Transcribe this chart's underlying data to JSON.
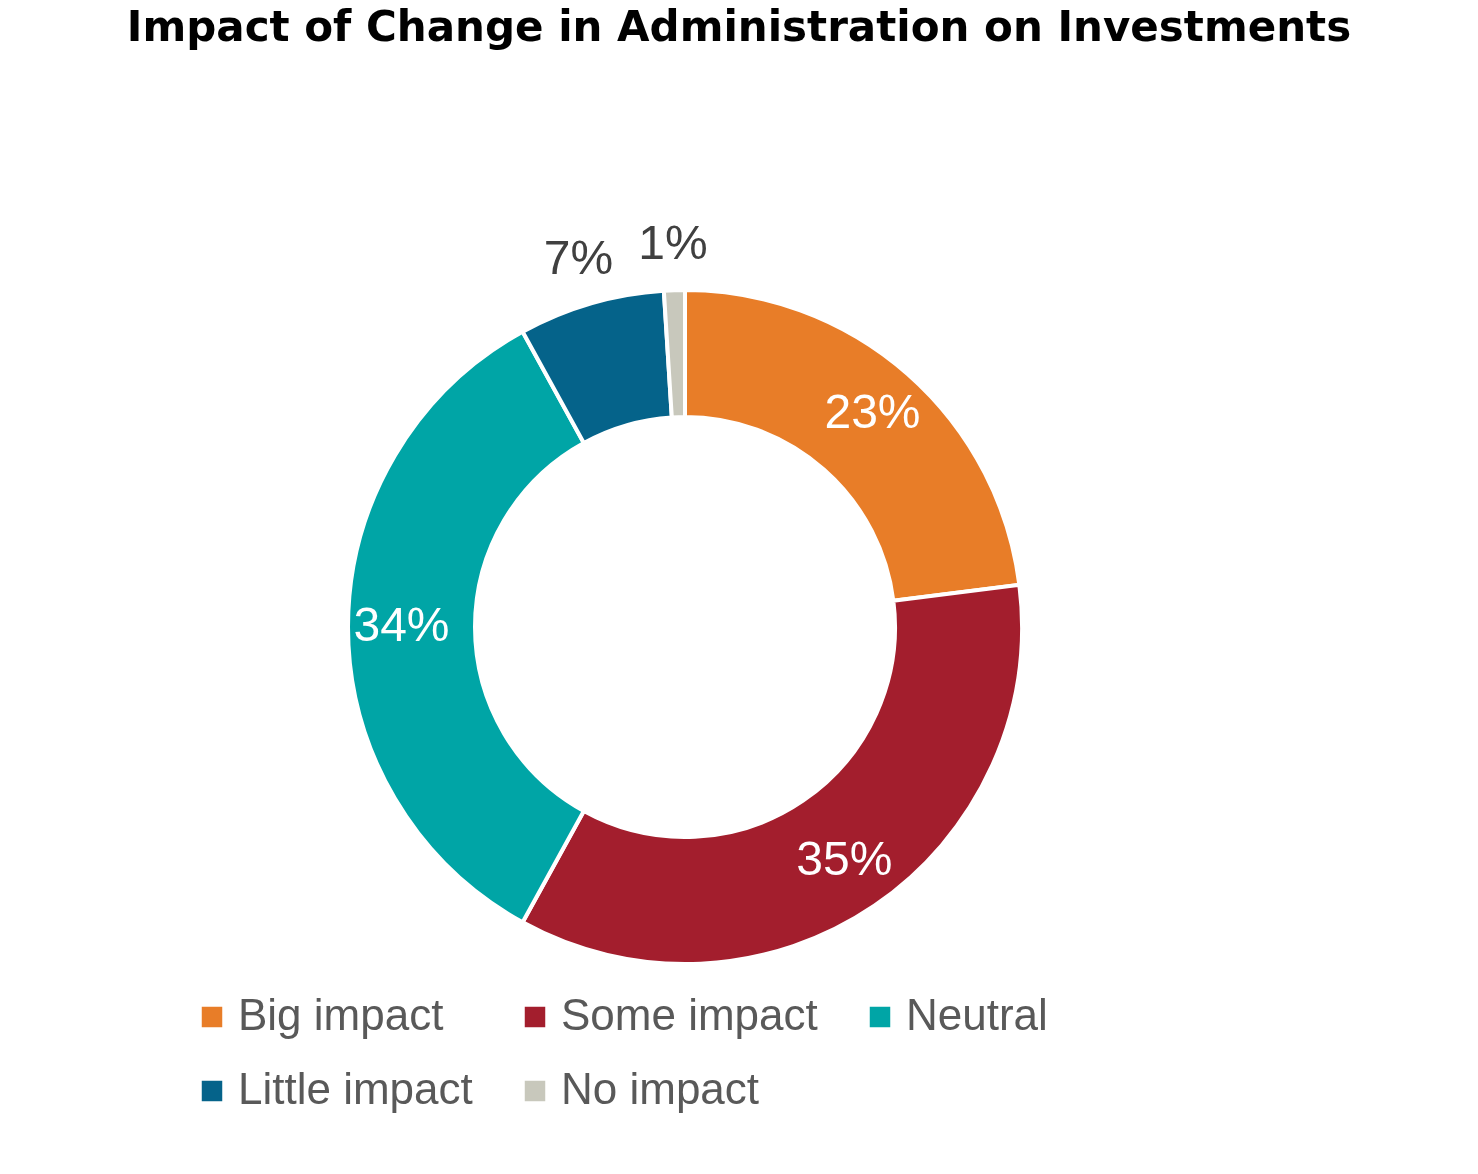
{
  "chart_data": {
    "type": "donut",
    "title": "Impact of Change in Administration on Investments",
    "categories": [
      "Big impact",
      "Some impact",
      "Neutral",
      "Little impact",
      "No impact"
    ],
    "values": [
      23,
      35,
      34,
      7,
      1
    ],
    "value_labels": [
      "23%",
      "35%",
      "34%",
      "7%",
      "1%"
    ],
    "colors": [
      "#e87d28",
      "#a31e2d",
      "#00a5a6",
      "#05638a",
      "#c8c8bc"
    ],
    "legend": "bottom"
  }
}
